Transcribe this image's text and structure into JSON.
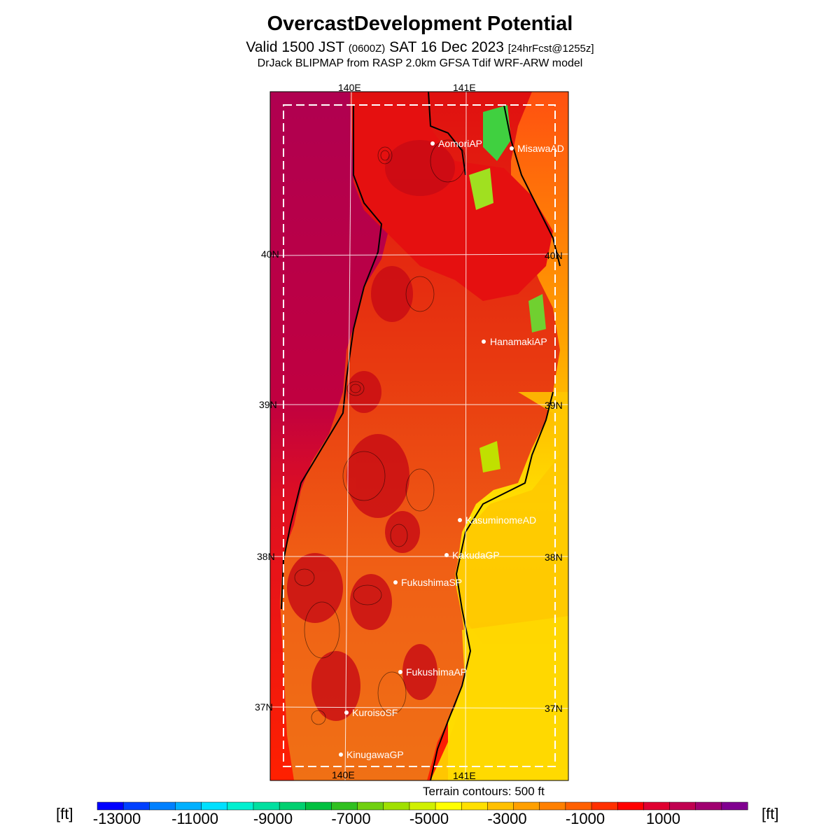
{
  "header": {
    "title": "OvercastDevelopment Potential",
    "valid_prefix": "Valid 1500 JST",
    "valid_utc": "(0600Z)",
    "valid_date": "SAT 16 Dec 2023",
    "forecast": "[24hrFcst@1255z]",
    "model": "DrJack BLIPMAP from RASP 2.0km GFSA Tdif WRF-ARW model"
  },
  "map": {
    "lon_labels": [
      "140E",
      "141E"
    ],
    "lat_labels": [
      "40N",
      "39N",
      "38N",
      "37N"
    ],
    "stations": [
      {
        "name": "AomoriAP"
      },
      {
        "name": "MisawaAD"
      },
      {
        "name": "HanamakiAP"
      },
      {
        "name": "KasuminomeAD"
      },
      {
        "name": "KakudaGP"
      },
      {
        "name": "FukushimaSP"
      },
      {
        "name": "FukushimaAP"
      },
      {
        "name": "KuroisoSF"
      },
      {
        "name": "KinugawaGP"
      }
    ],
    "terrain_note": "Terrain contours: 500 ft"
  },
  "colorbar": {
    "unit_left": "[ft]",
    "unit_right": "[ft]",
    "labels": [
      "-13000",
      "-11000",
      "-9000",
      "-7000",
      "-5000",
      "-3000",
      "-1000",
      "1000"
    ],
    "colors": [
      "#0000ff",
      "#0040ff",
      "#0080ff",
      "#00b0ff",
      "#00e0ff",
      "#00f0d0",
      "#00e0a0",
      "#00d070",
      "#00c040",
      "#30c020",
      "#70d010",
      "#a0e000",
      "#d0f000",
      "#ffff00",
      "#ffe000",
      "#ffc000",
      "#ffa000",
      "#ff8000",
      "#ff6000",
      "#ff3000",
      "#ff0000",
      "#e00030",
      "#c00050",
      "#a00070",
      "#800090"
    ]
  }
}
